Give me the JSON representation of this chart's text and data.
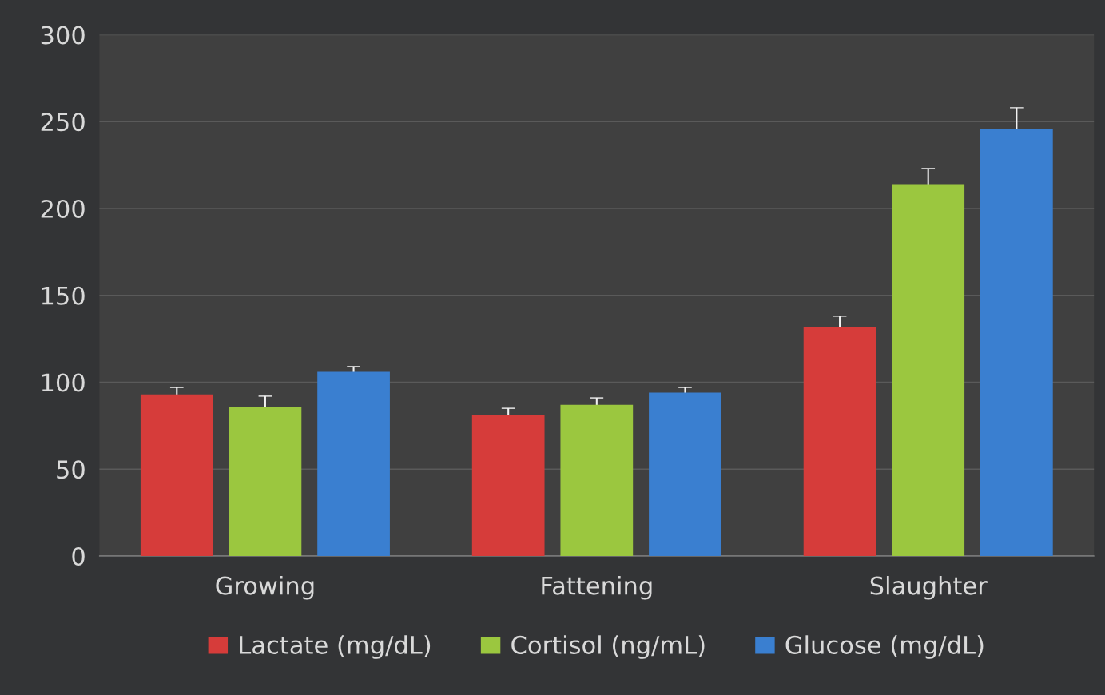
{
  "chart_data": {
    "type": "bar",
    "categories": [
      "Growing",
      "Fattening",
      "Slaughter"
    ],
    "series": [
      {
        "name": "Lactate (mg/dL)",
        "color": "#d63c3a",
        "values": [
          93,
          81,
          132
        ],
        "errors": [
          4,
          4,
          6
        ]
      },
      {
        "name": "Cortisol (ng/mL)",
        "color": "#9bc73f",
        "values": [
          86,
          87,
          214
        ],
        "errors": [
          6,
          4,
          9
        ]
      },
      {
        "name": "Glucose (mg/dL)",
        "color": "#3a7fd0",
        "values": [
          106,
          94,
          246
        ],
        "errors": [
          3,
          3,
          12
        ]
      }
    ],
    "ylim": [
      0,
      300
    ],
    "yticks": [
      0,
      50,
      100,
      150,
      200,
      250,
      300
    ],
    "grid": "y",
    "legend": "bottom"
  }
}
